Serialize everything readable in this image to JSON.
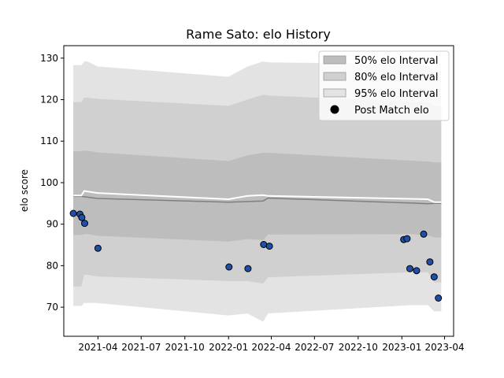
{
  "chart_data": {
    "type": "scatter",
    "title": "Rame Sato: elo History",
    "xlabel": "",
    "ylabel": "elo score",
    "ylim": [
      63,
      133
    ],
    "xlim": [
      "2021-01-19",
      "2023-04-20"
    ],
    "grid": false,
    "legend_position": "top-right",
    "x_ticks": [
      "2021-04",
      "2021-07",
      "2021-10",
      "2022-01",
      "2022-04",
      "2022-07",
      "2022-10",
      "2023-01",
      "2023-04"
    ],
    "y_ticks": [
      70,
      80,
      90,
      100,
      110,
      120,
      130
    ],
    "legend": [
      {
        "label": "50% elo Interval",
        "kind": "band50"
      },
      {
        "label": "80% elo Interval",
        "kind": "band80"
      },
      {
        "label": "95% elo Interval",
        "kind": "band95"
      },
      {
        "label": "Post Match elo",
        "kind": "point"
      }
    ],
    "bands": {
      "x": [
        "2021-02-08",
        "2021-02-25",
        "2021-03-03",
        "2021-03-10",
        "2021-03-31",
        "2022-01-01",
        "2022-02-10",
        "2022-03-15",
        "2022-03-25",
        "2023-01-20",
        "2023-02-25",
        "2023-03-10",
        "2023-03-25"
      ],
      "band95": {
        "lower": [
          70.3,
          70.3,
          71,
          71,
          71,
          68,
          68.5,
          66.5,
          68.5,
          70.5,
          70.5,
          69,
          69
        ],
        "upper": [
          128.3,
          128.3,
          129.2,
          129.2,
          128,
          125.5,
          128,
          129.2,
          129,
          128.5,
          128,
          127,
          127
        ]
      },
      "band80": {
        "lower": [
          75,
          75,
          77.8,
          77.8,
          77.4,
          76.3,
          76.3,
          75.7,
          77.2,
          78.4,
          78.4,
          76,
          76
        ],
        "upper": [
          119.4,
          119.4,
          120.5,
          120.5,
          120.2,
          118.5,
          120,
          121.2,
          121,
          119.5,
          119.5,
          118.5,
          118.5
        ]
      },
      "band50": {
        "lower": [
          87.4,
          87.4,
          87.6,
          87.6,
          87.2,
          85.8,
          86.4,
          86.2,
          87.5,
          87.6,
          87.3,
          86.8,
          86.8
        ],
        "upper": [
          107.6,
          107.6,
          107.7,
          107.7,
          107.3,
          105.2,
          106.6,
          107.2,
          107.2,
          105.3,
          105.1,
          104.9,
          104.9
        ]
      }
    },
    "median_line": {
      "x": [
        "2021-02-08",
        "2021-02-25",
        "2021-03-31",
        "2022-01-01",
        "2022-03-15",
        "2022-03-25",
        "2023-01-20",
        "2023-02-25",
        "2023-03-10",
        "2023-03-25"
      ],
      "y": [
        96.7,
        96.7,
        96.2,
        95.3,
        95.6,
        96.3,
        95.1,
        94.9,
        95.0,
        95.0
      ]
    },
    "mean_line": {
      "x": [
        "2021-02-08",
        "2021-02-25",
        "2021-03-03",
        "2021-03-31",
        "2022-01-01",
        "2022-02-10",
        "2022-03-15",
        "2022-03-25",
        "2023-01-20",
        "2023-02-25",
        "2023-03-10",
        "2023-03-25"
      ],
      "y": [
        96.9,
        96.9,
        98,
        97.5,
        96,
        96.8,
        97,
        96.8,
        96.1,
        96,
        95.3,
        95.3
      ]
    },
    "points": [
      {
        "x": "2021-02-08",
        "y": 92.6
      },
      {
        "x": "2021-02-22",
        "y": 92.4
      },
      {
        "x": "2021-02-26",
        "y": 91.6
      },
      {
        "x": "2021-03-04",
        "y": 90.2
      },
      {
        "x": "2021-04-01",
        "y": 84.2
      },
      {
        "x": "2022-01-02",
        "y": 79.7
      },
      {
        "x": "2022-02-11",
        "y": 79.3
      },
      {
        "x": "2022-03-16",
        "y": 85.1
      },
      {
        "x": "2022-03-28",
        "y": 84.7
      },
      {
        "x": "2023-01-05",
        "y": 86.3
      },
      {
        "x": "2023-01-12",
        "y": 86.5
      },
      {
        "x": "2023-01-18",
        "y": 79.3
      },
      {
        "x": "2023-02-01",
        "y": 78.8
      },
      {
        "x": "2023-02-16",
        "y": 87.6
      },
      {
        "x": "2023-03-01",
        "y": 80.9
      },
      {
        "x": "2023-03-10",
        "y": 77.3
      },
      {
        "x": "2023-03-19",
        "y": 72.2
      }
    ],
    "colors": {
      "band95": "#e3e3e3",
      "band80": "#d0d0d0",
      "band50": "#bdbdbd",
      "median_line": "#7f7f7f",
      "mean_line": "#ffffff",
      "point_fill": "#1f4fa8",
      "point_edge": "#000000"
    }
  }
}
